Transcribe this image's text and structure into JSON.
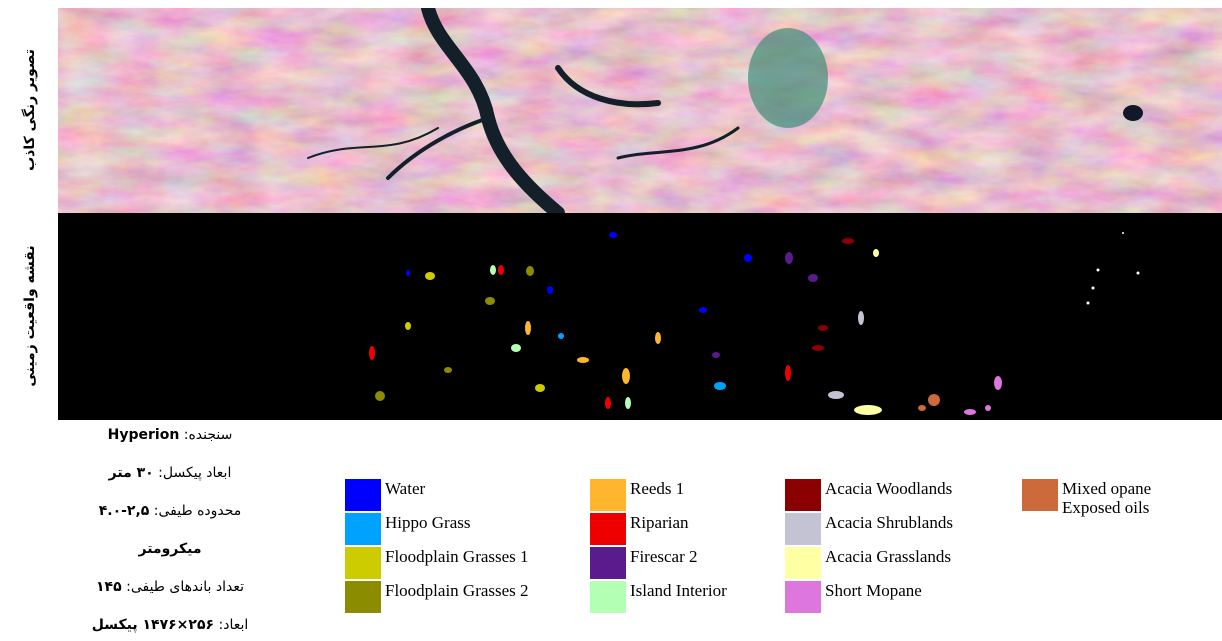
{
  "side_labels": {
    "top": "تصویر رنگی کاذب",
    "bottom": "نقشه واقعیت زمینی"
  },
  "info": [
    {
      "label": "سنجنده:",
      "value": "Hyperion"
    },
    {
      "label": "ابعاد پیکسل:",
      "value": "۳۰ متر"
    },
    {
      "label": "محدوده طیفی:",
      "value": "۴.۰-۲,۵"
    },
    {
      "label": "",
      "value": "میکرومتر"
    },
    {
      "label": "تعداد باندهای طیفی:",
      "value": "۱۴۵"
    },
    {
      "label": "ابعاد:",
      "value": "۲۵۶×۱۴۷۶ پیکسل"
    }
  ],
  "legend": [
    [
      {
        "name": "Water",
        "color": "#0000ff"
      },
      {
        "name": "Hippo Grass",
        "color": "#00a2ff"
      },
      {
        "name": "Floodplain Grasses 1",
        "color": "#cccc00"
      },
      {
        "name": "Floodplain Grasses 2",
        "color": "#8c8c00"
      }
    ],
    [
      {
        "name": "Reeds 1",
        "color": "#ffb62e"
      },
      {
        "name": "Riparian",
        "color": "#ee0000"
      },
      {
        "name": "Firescar 2",
        "color": "#5a1b8d"
      },
      {
        "name": "Island Interior",
        "color": "#b3ffb3"
      }
    ],
    [
      {
        "name": "Acacia Woodlands",
        "color": "#8b0000"
      },
      {
        "name": "Acacia Shrublands",
        "color": "#c3c3d3"
      },
      {
        "name": "Acacia Grasslands",
        "color": "#ffffa3"
      },
      {
        "name": "Short Mopane",
        "color": "#dd77dd"
      }
    ],
    [
      {
        "name": "Mixed opane\nExposed oils",
        "color": "#cd6a3c"
      }
    ]
  ]
}
